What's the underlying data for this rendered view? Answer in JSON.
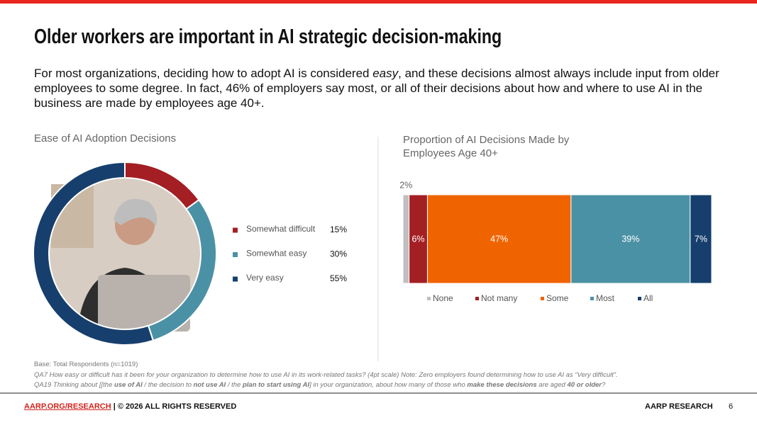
{
  "title": "Older workers are important in AI strategic decision-making",
  "intro": [
    "For most organizations, deciding how to adopt AI is considered ",
    "easy",
    ", and these decisions almost always include input from older employees to some degree. In fact, 46% of employers say most, or all of their decisions about how and where to use AI in the business are made by employees age 40+."
  ],
  "chart_data": [
    {
      "type": "donut",
      "title": "Ease of AI Adoption Decisions",
      "categories": [
        "Somewhat difficult",
        "Somewhat easy",
        "Very easy"
      ],
      "values": [
        15,
        30,
        55
      ],
      "value_labels": [
        "15%",
        "30%",
        "55%"
      ],
      "colors": [
        "#a31f24",
        "#4b91a6",
        "#163f6d"
      ]
    },
    {
      "type": "stacked-bar-horizontal",
      "title": "Proportion of AI Decisions Made by Employees Age 40+",
      "series": [
        {
          "name": "None",
          "color": "#bfbfbf",
          "values": [
            2
          ],
          "value_labels": [
            "2%"
          ]
        },
        {
          "name": "Not many",
          "color": "#a31f24",
          "values": [
            6
          ],
          "value_labels": [
            "6%"
          ]
        },
        {
          "name": "Some",
          "color": "#f06400",
          "values": [
            47
          ],
          "value_labels": [
            "47%"
          ]
        },
        {
          "name": "Most",
          "color": "#4b91a6",
          "values": [
            39
          ],
          "value_labels": [
            "39%"
          ]
        },
        {
          "name": "All",
          "color": "#163f6d",
          "values": [
            7
          ],
          "value_labels": [
            "7%"
          ]
        }
      ]
    }
  ],
  "notes": {
    "base": "Base: Total Respondents (n=1019)",
    "qa7": "QA7 How easy or difficult has it been for your organization to determine how to use AI in its work-related tasks? (4pt scale)  Note: Zero employers found determining how to use AI as “Very difficult”.",
    "qa19": [
      "QA19 Thinking about [[the ",
      "use of AI",
      " / the decision to ",
      "not use AI",
      " / the ",
      "plan to start using AI",
      "] in your organization, about how many of those who ",
      "make these decisions",
      " are aged ",
      "40 or older",
      "?"
    ]
  },
  "footer": {
    "link": "AARP.ORG/RESEARCH",
    "rights": "| © 2026 ALL RIGHTS RESERVED",
    "brand": "AARP RESEARCH",
    "page": "6"
  }
}
